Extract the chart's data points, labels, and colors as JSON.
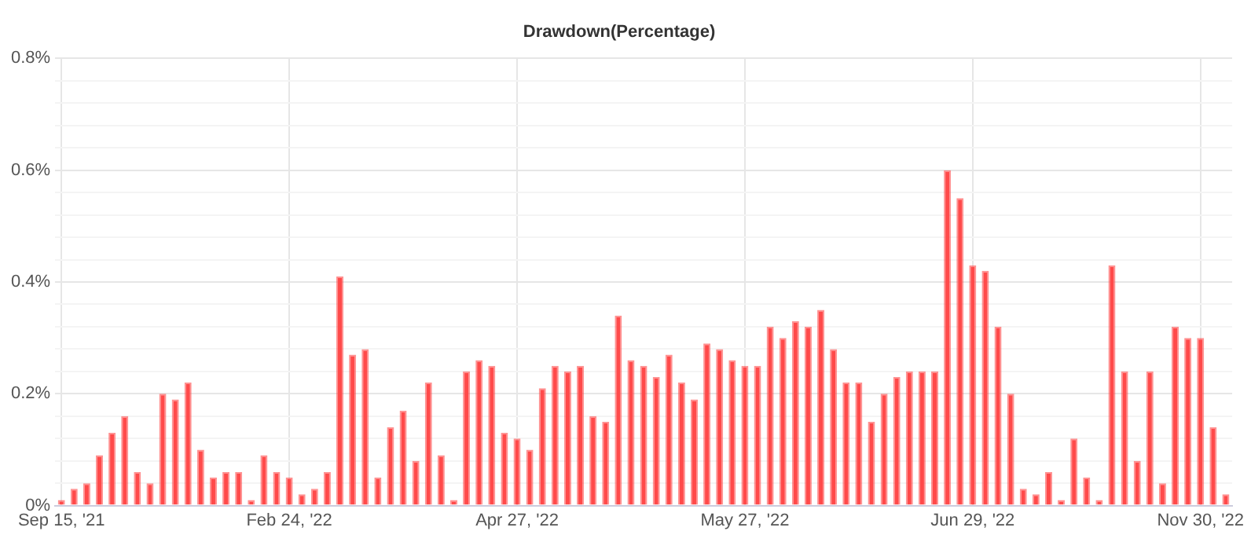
{
  "chart_data": {
    "type": "bar",
    "title": "Drawdown(Percentage)",
    "categories": [
      "Sep 15, '21",
      null,
      null,
      null,
      null,
      null,
      null,
      null,
      null,
      null,
      null,
      null,
      null,
      null,
      null,
      null,
      null,
      null,
      "Feb 24, '22",
      null,
      null,
      null,
      null,
      null,
      null,
      null,
      null,
      null,
      null,
      null,
      null,
      null,
      null,
      null,
      null,
      null,
      "Apr 27, '22",
      null,
      null,
      null,
      null,
      null,
      null,
      null,
      null,
      null,
      null,
      null,
      null,
      null,
      null,
      null,
      null,
      null,
      "May 27, '22",
      null,
      null,
      null,
      null,
      null,
      null,
      null,
      null,
      null,
      null,
      null,
      null,
      null,
      null,
      null,
      null,
      null,
      "Jun 29, '22",
      null,
      null,
      null,
      null,
      null,
      null,
      null,
      null,
      null,
      null,
      null,
      null,
      null,
      null,
      null,
      null,
      null,
      "Nov 30, '22",
      null,
      null
    ],
    "values": [
      0.01,
      0.03,
      0.04,
      0.09,
      0.13,
      0.16,
      0.06,
      0.04,
      0.2,
      0.19,
      0.22,
      0.1,
      0.05,
      0.06,
      0.06,
      0.01,
      0.09,
      0.06,
      0.05,
      0.02,
      0.03,
      0.06,
      0.41,
      0.27,
      0.28,
      0.05,
      0.14,
      0.17,
      0.08,
      0.22,
      0.09,
      0.01,
      0.24,
      0.26,
      0.25,
      0.13,
      0.12,
      0.1,
      0.21,
      0.25,
      0.24,
      0.25,
      0.16,
      0.15,
      0.34,
      0.26,
      0.25,
      0.23,
      0.27,
      0.22,
      0.19,
      0.29,
      0.28,
      0.26,
      0.25,
      0.25,
      0.32,
      0.3,
      0.33,
      0.32,
      0.35,
      0.28,
      0.22,
      0.22,
      0.15,
      0.2,
      0.23,
      0.24,
      0.24,
      0.24,
      0.6,
      0.55,
      0.43,
      0.42,
      0.32,
      0.2,
      0.03,
      0.02,
      0.06,
      0.01,
      0.12,
      0.05,
      0.01,
      0.43,
      0.24,
      0.08,
      0.24,
      0.04,
      0.32,
      0.3,
      0.3,
      0.14,
      0.02
    ],
    "color": "#ff4a4a",
    "ylim": [
      0,
      0.8
    ],
    "yticks": [
      {
        "value": 0,
        "label": "0%"
      },
      {
        "value": 0.04,
        "label": null
      },
      {
        "value": 0.08,
        "label": null
      },
      {
        "value": 0.12,
        "label": null
      },
      {
        "value": 0.16,
        "label": null
      },
      {
        "value": 0.2,
        "label": "0.2%"
      },
      {
        "value": 0.24,
        "label": null
      },
      {
        "value": 0.28,
        "label": null
      },
      {
        "value": 0.32,
        "label": null
      },
      {
        "value": 0.36,
        "label": null
      },
      {
        "value": 0.4,
        "label": "0.4%"
      },
      {
        "value": 0.44,
        "label": null
      },
      {
        "value": 0.48,
        "label": null
      },
      {
        "value": 0.52,
        "label": null
      },
      {
        "value": 0.56,
        "label": null
      },
      {
        "value": 0.6,
        "label": "0.6%"
      },
      {
        "value": 0.64,
        "label": null
      },
      {
        "value": 0.68,
        "label": null
      },
      {
        "value": 0.72,
        "label": null
      },
      {
        "value": 0.76,
        "label": null
      },
      {
        "value": 0.8,
        "label": "0.8%"
      }
    ],
    "grid": true,
    "legend": false
  }
}
